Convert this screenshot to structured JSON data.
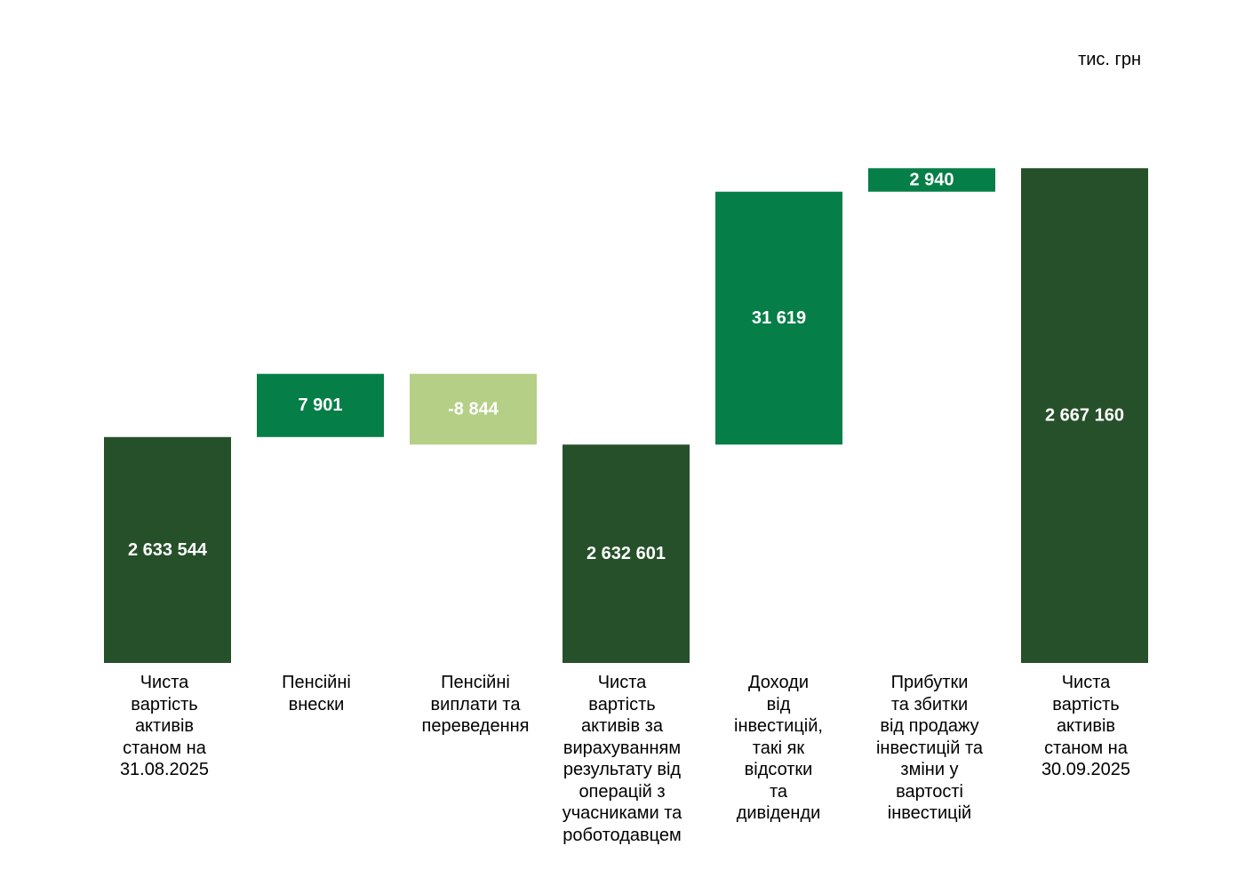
{
  "unit_label": "тис. грн",
  "colors": {
    "total": "#26502a",
    "increase": "#067e48",
    "decrease": "#b5cf86",
    "value_text": "#ffffff"
  },
  "chart_data": {
    "type": "waterfall",
    "title": "",
    "unit": "тис. грн",
    "categories": [
      "Чиста вартість активів станом на 31.08.2025",
      "Пенсійні внески",
      "Пенсійні виплати та переведення",
      "Чиста вартість активів за вирахуванням результату від операцій з учасниками та роботодавцем",
      "Доходи від інвестицій, такі як відсотки та дивіденди",
      "Прибутки та збитки від продажу інвестицій та зміни у вартості інвестицій",
      "Чиста вартість активів станом на 30.09.2025"
    ],
    "values": [
      2633544,
      7901,
      -8844,
      2632601,
      31619,
      2940,
      2667160
    ],
    "value_labels": [
      "2 633 544",
      "7 901",
      "-8 844",
      "2 632 601",
      "31 619",
      "2 940",
      "2 667 160"
    ],
    "kinds": [
      "total",
      "increase",
      "decrease",
      "total",
      "increase",
      "increase",
      "total"
    ],
    "axis_break": true,
    "grid": false,
    "legend": "none"
  },
  "labels": [
    "Чиста\nвартість\nактивів\nстаном на\n31.08.2025",
    "Пенсійні\nвнески",
    "Пенсійні\nвиплати та\nпереведення",
    "Чиста\nвартість\nактивів за\nвирахуванням\nрезультату від\nоперацій з\nучасниками та\nроботодавцем",
    "Доходи\nвід\nінвестицій,\nтакі як\nвідсотки\nта\nдивіденди",
    "Прибутки\nта збитки\nвід продажу\nінвестицій та\nзміни у\nвартості\nінвестицій",
    "Чиста\nвартість\nактивів\nстаном на\n30.09.2025"
  ]
}
